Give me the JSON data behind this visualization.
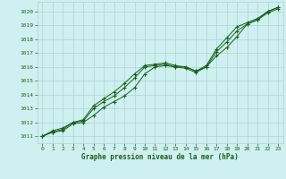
{
  "title": "Graphe pression niveau de la mer (hPa)",
  "bg_color": "#cff0f0",
  "grid_color": "#a8d4d4",
  "line_color": "#1a5e1a",
  "xlim": [
    -0.5,
    23.5
  ],
  "ylim": [
    1010.5,
    1020.7
  ],
  "xticks": [
    0,
    1,
    2,
    3,
    4,
    5,
    6,
    7,
    8,
    9,
    10,
    11,
    12,
    13,
    14,
    15,
    16,
    17,
    18,
    19,
    20,
    21,
    22,
    23
  ],
  "yticks": [
    1011,
    1012,
    1013,
    1014,
    1015,
    1016,
    1017,
    1018,
    1019,
    1020
  ],
  "series1_x": [
    0,
    1,
    2,
    3,
    4,
    5,
    6,
    7,
    8,
    9,
    10,
    11,
    12,
    13,
    14,
    15,
    16,
    17,
    18,
    19,
    20,
    21,
    22,
    23
  ],
  "series1_y": [
    1011.0,
    1011.3,
    1011.4,
    1011.9,
    1012.0,
    1012.5,
    1013.1,
    1013.5,
    1013.9,
    1014.5,
    1015.5,
    1016.0,
    1016.1,
    1016.0,
    1015.9,
    1015.6,
    1016.0,
    1016.8,
    1017.4,
    1018.2,
    1019.1,
    1019.4,
    1019.9,
    1020.2
  ],
  "series2_x": [
    0,
    1,
    2,
    3,
    4,
    5,
    6,
    7,
    8,
    9,
    10,
    11,
    12,
    13,
    14,
    15,
    16,
    17,
    18,
    19,
    20,
    21,
    22,
    23
  ],
  "series2_y": [
    1011.0,
    1011.3,
    1011.5,
    1012.0,
    1012.1,
    1013.0,
    1013.5,
    1013.9,
    1014.5,
    1015.2,
    1016.0,
    1016.1,
    1016.2,
    1016.0,
    1016.0,
    1015.7,
    1016.0,
    1017.1,
    1017.8,
    1018.6,
    1019.1,
    1019.4,
    1020.0,
    1020.3
  ],
  "series3_x": [
    0,
    1,
    2,
    3,
    4,
    5,
    6,
    7,
    8,
    9,
    10,
    11,
    12,
    13,
    14,
    15,
    16,
    17,
    18,
    19,
    20,
    21,
    22,
    23
  ],
  "series3_y": [
    1011.0,
    1011.4,
    1011.6,
    1012.0,
    1012.2,
    1013.2,
    1013.7,
    1014.2,
    1014.8,
    1015.5,
    1016.1,
    1016.2,
    1016.3,
    1016.1,
    1016.0,
    1015.7,
    1016.1,
    1017.3,
    1018.1,
    1018.9,
    1019.2,
    1019.5,
    1020.0,
    1020.3
  ]
}
